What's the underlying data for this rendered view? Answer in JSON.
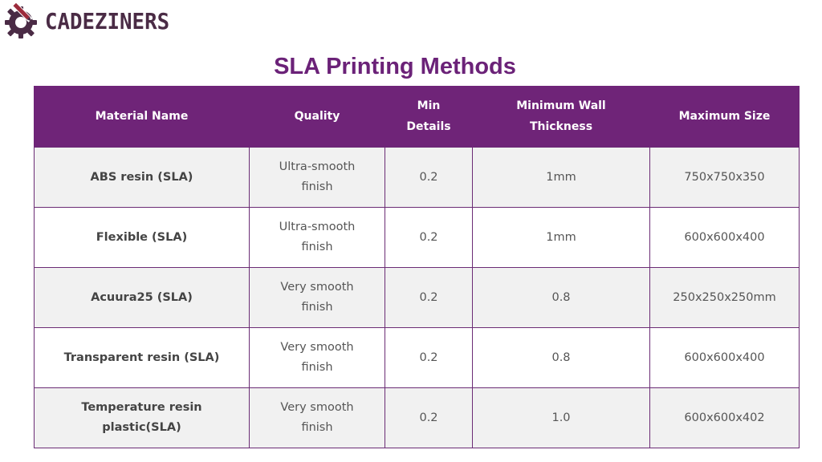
{
  "brand": {
    "name": "CADEZINERS",
    "colors": {
      "primary": "#6f2478",
      "logo_dark": "#4a2b45",
      "logo_red": "#9c2b3c"
    },
    "icon": "gear-pencil-logo-icon"
  },
  "page": {
    "title": "SLA Printing Methods"
  },
  "table": {
    "headers": {
      "material": "Material Name",
      "quality": "Quality",
      "min_details_1": "Min",
      "min_details_2": "Details",
      "min_wall_1": "Minimum Wall",
      "min_wall_2": "Thickness",
      "max_size": "Maximum Size"
    },
    "rows": [
      {
        "material_1": "ABS resin (SLA)",
        "material_2": "",
        "quality_1": "Ultra-smooth",
        "quality_2": "finish",
        "min_details": "0.2",
        "min_wall": "1mm",
        "max_size": "750x750x350"
      },
      {
        "material_1": "Flexible (SLA)",
        "material_2": "",
        "quality_1": "Ultra-smooth",
        "quality_2": "finish",
        "min_details": "0.2",
        "min_wall": "1mm",
        "max_size": "600x600x400"
      },
      {
        "material_1": "Acuura25 (SLA)",
        "material_2": "",
        "quality_1": "Very smooth",
        "quality_2": "finish",
        "min_details": "0.2",
        "min_wall": "0.8",
        "max_size": "250x250x250mm"
      },
      {
        "material_1": "Transparent resin (SLA)",
        "material_2": "",
        "quality_1": "Very smooth",
        "quality_2": "finish",
        "min_details": "0.2",
        "min_wall": "0.8",
        "max_size": "600x600x400"
      },
      {
        "material_1": "Temperature resin",
        "material_2": "plastic(SLA)",
        "quality_1": "Very smooth",
        "quality_2": "finish",
        "min_details": "0.2",
        "min_wall": "1.0",
        "max_size": "600x600x402"
      }
    ]
  }
}
